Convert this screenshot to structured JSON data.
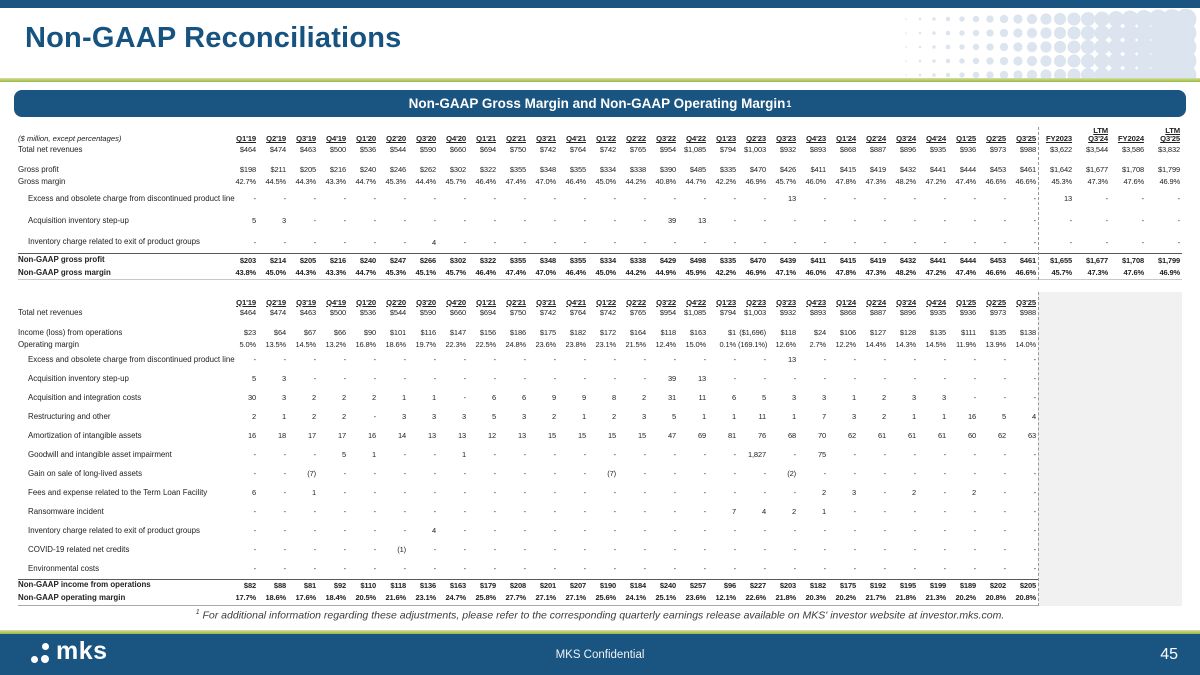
{
  "slide": {
    "title": "Non-GAAP Reconciliations",
    "banner": {
      "title": "Non-GAAP Gross Margin and Non-GAAP Operating Margin",
      "superscript": "1"
    },
    "footnote": {
      "sup": "1",
      "text": "For additional information regarding these adjustments, please refer to the corresponding quarterly earnings release available on MKS' investor website at investor.mks.com."
    },
    "footer": {
      "logo_text": "mks",
      "confidential": "MKS Confidential",
      "page_number": "45"
    }
  },
  "colors": {
    "primary_blue": "#1a5480",
    "title_blue": "#175380",
    "accent_green": "#9bb93c",
    "pattern_blue": "#dce4f0",
    "empty_area_grey": "#f1f1f2"
  },
  "tables": [
    {
      "name": "gross-margin-reconciliation-table",
      "unit_label": "($ million, except percentages)",
      "columns": [
        "Q1'19",
        "Q2'19",
        "Q3'19",
        "Q4'19",
        "Q1'20",
        "Q2'20",
        "Q3'20",
        "Q4'20",
        "Q1'21",
        "Q2'21",
        "Q3'21",
        "Q4'21",
        "Q1'22",
        "Q2'22",
        "Q3'22",
        "Q4'22",
        "Q1'23",
        "Q2'23",
        "Q3'23",
        "Q4'23",
        "Q1'24",
        "Q2'24",
        "Q3'24",
        "Q4'24",
        "Q1'25",
        "Q2'25",
        "Q3'25",
        "FY2023",
        "LTM|Q3'24",
        "FY2024",
        "LTM|Q3'25"
      ],
      "rows": [
        {
          "label": "Total net revenues",
          "cls": "plain",
          "values": [
            "$464",
            "$474",
            "$463",
            "$500",
            "$536",
            "$544",
            "$590",
            "$660",
            "$694",
            "$750",
            "$742",
            "$764",
            "$742",
            "$765",
            "$954",
            "$1,085",
            "$794",
            "$1,003",
            "$932",
            "$893",
            "$868",
            "$887",
            "$896",
            "$935",
            "$936",
            "$973",
            "$988",
            "$3,622",
            "$3,544",
            "$3,586",
            "$3,832"
          ]
        },
        {
          "spacer": true
        },
        {
          "label": "Gross profit",
          "cls": "plain",
          "values": [
            "$198",
            "$211",
            "$205",
            "$216",
            "$240",
            "$246",
            "$262",
            "$302",
            "$322",
            "$355",
            "$348",
            "$355",
            "$334",
            "$338",
            "$390",
            "$485",
            "$335",
            "$470",
            "$426",
            "$411",
            "$415",
            "$419",
            "$432",
            "$441",
            "$444",
            "$453",
            "$461",
            "$1,642",
            "$1,677",
            "$1,708",
            "$1,799"
          ]
        },
        {
          "label": "Gross margin",
          "cls": "plain",
          "values": [
            "42.7%",
            "44.5%",
            "44.3%",
            "43.3%",
            "44.7%",
            "45.3%",
            "44.4%",
            "45.7%",
            "46.4%",
            "47.4%",
            "47.0%",
            "46.4%",
            "45.0%",
            "44.2%",
            "40.8%",
            "44.7%",
            "42.2%",
            "46.9%",
            "45.7%",
            "46.0%",
            "47.8%",
            "47.3%",
            "48.2%",
            "47.2%",
            "47.4%",
            "46.6%",
            "46.6%",
            "45.3%",
            "47.3%",
            "47.6%",
            "46.9%"
          ]
        },
        {
          "label": "Excess and obsolete charge from discontinued product line",
          "cls": "ind",
          "values": [
            "-",
            "-",
            "-",
            "-",
            "-",
            "-",
            "-",
            "-",
            "-",
            "-",
            "-",
            "-",
            "-",
            "-",
            "-",
            "-",
            "-",
            "-",
            "13",
            "-",
            "-",
            "-",
            "-",
            "-",
            "-",
            "-",
            "-",
            "13",
            "-",
            "-",
            "-"
          ]
        },
        {
          "label": "Acquisition inventory step-up",
          "cls": "ind",
          "values": [
            "5",
            "3",
            "-",
            "-",
            "-",
            "-",
            "-",
            "-",
            "-",
            "-",
            "-",
            "-",
            "-",
            "-",
            "39",
            "13",
            "-",
            "-",
            "-",
            "-",
            "-",
            "-",
            "-",
            "-",
            "-",
            "-",
            "-",
            "-",
            "-",
            "-",
            "-"
          ]
        },
        {
          "label": "Inventory charge related to exit of product groups",
          "cls": "ind",
          "values": [
            "-",
            "-",
            "-",
            "-",
            "-",
            "-",
            "4",
            "-",
            "-",
            "-",
            "-",
            "-",
            "-",
            "-",
            "-",
            "-",
            "-",
            "-",
            "-",
            "-",
            "-",
            "-",
            "-",
            "-",
            "-",
            "-",
            "-",
            "-",
            "-",
            "-",
            "-"
          ]
        },
        {
          "label": "Non-GAAP gross profit",
          "cls": "boldtop",
          "values": [
            "$203",
            "$214",
            "$205",
            "$216",
            "$240",
            "$247",
            "$266",
            "$302",
            "$322",
            "$355",
            "$348",
            "$355",
            "$334",
            "$338",
            "$429",
            "$498",
            "$335",
            "$470",
            "$439",
            "$411",
            "$415",
            "$419",
            "$432",
            "$441",
            "$444",
            "$453",
            "$461",
            "$1,655",
            "$1,677",
            "$1,708",
            "$1,799"
          ]
        },
        {
          "label": "Non-GAAP gross margin",
          "cls": "bold",
          "values": [
            "43.8%",
            "45.0%",
            "44.3%",
            "43.3%",
            "44.7%",
            "45.3%",
            "45.1%",
            "45.7%",
            "46.4%",
            "47.4%",
            "47.0%",
            "46.4%",
            "45.0%",
            "44.2%",
            "44.9%",
            "45.9%",
            "42.2%",
            "46.9%",
            "47.1%",
            "46.0%",
            "47.8%",
            "47.3%",
            "48.2%",
            "47.2%",
            "47.4%",
            "46.6%",
            "46.6%",
            "45.7%",
            "47.3%",
            "47.6%",
            "46.9%"
          ]
        }
      ]
    },
    {
      "name": "operating-margin-reconciliation-table",
      "unit_label": "",
      "columns": [
        "Q1'19",
        "Q2'19",
        "Q3'19",
        "Q4'19",
        "Q1'20",
        "Q2'20",
        "Q3'20",
        "Q4'20",
        "Q1'21",
        "Q2'21",
        "Q3'21",
        "Q4'21",
        "Q1'22",
        "Q2'22",
        "Q3'22",
        "Q4'22",
        "Q1'23",
        "Q2'23",
        "Q3'23",
        "Q4'23",
        "Q1'24",
        "Q2'24",
        "Q3'24",
        "Q4'24",
        "Q1'25",
        "Q2'25",
        "Q3'25"
      ],
      "rows": [
        {
          "label": "Total net revenues",
          "cls": "plain",
          "values": [
            "$464",
            "$474",
            "$463",
            "$500",
            "$536",
            "$544",
            "$590",
            "$660",
            "$694",
            "$750",
            "$742",
            "$764",
            "$742",
            "$765",
            "$954",
            "$1,085",
            "$794",
            "$1,003",
            "$932",
            "$893",
            "$868",
            "$887",
            "$896",
            "$935",
            "$936",
            "$973",
            "$988"
          ]
        },
        {
          "spacer": true
        },
        {
          "label": "Income (loss) from operations",
          "cls": "plain",
          "values": [
            "$23",
            "$64",
            "$67",
            "$66",
            "$90",
            "$101",
            "$116",
            "$147",
            "$156",
            "$186",
            "$175",
            "$182",
            "$172",
            "$164",
            "$118",
            "$163",
            "$1",
            "($1,696)",
            "$118",
            "$24",
            "$106",
            "$127",
            "$128",
            "$135",
            "$111",
            "$135",
            "$138"
          ]
        },
        {
          "label": "Operating margin",
          "cls": "plain",
          "values": [
            "5.0%",
            "13.5%",
            "14.5%",
            "13.2%",
            "16.8%",
            "18.6%",
            "19.7%",
            "22.3%",
            "22.5%",
            "24.8%",
            "23.6%",
            "23.8%",
            "23.1%",
            "21.5%",
            "12.4%",
            "15.0%",
            "0.1%",
            "(169.1%)",
            "12.6%",
            "2.7%",
            "12.2%",
            "14.4%",
            "14.3%",
            "14.5%",
            "11.9%",
            "13.9%",
            "14.0%"
          ]
        },
        {
          "label": "Excess and obsolete charge from discontinued product line",
          "cls": "ind",
          "values": [
            "-",
            "-",
            "-",
            "-",
            "-",
            "-",
            "-",
            "-",
            "-",
            "-",
            "-",
            "-",
            "-",
            "-",
            "-",
            "-",
            "-",
            "-",
            "13",
            "-",
            "-",
            "-",
            "-",
            "-",
            "-",
            "-",
            "-"
          ]
        },
        {
          "label": "Acquisition inventory step-up",
          "cls": "ind",
          "values": [
            "5",
            "3",
            "-",
            "-",
            "-",
            "-",
            "-",
            "-",
            "-",
            "-",
            "-",
            "-",
            "-",
            "-",
            "39",
            "13",
            "-",
            "-",
            "-",
            "-",
            "-",
            "-",
            "-",
            "-",
            "-",
            "-",
            "-"
          ]
        },
        {
          "label": "Acquisition and integration costs",
          "cls": "ind",
          "values": [
            "30",
            "3",
            "2",
            "2",
            "2",
            "1",
            "1",
            "-",
            "6",
            "6",
            "9",
            "9",
            "8",
            "2",
            "31",
            "11",
            "6",
            "5",
            "3",
            "3",
            "1",
            "2",
            "3",
            "3",
            "-",
            "-",
            "-"
          ]
        },
        {
          "label": "Restructuring and other",
          "cls": "ind",
          "values": [
            "2",
            "1",
            "2",
            "2",
            "-",
            "3",
            "3",
            "3",
            "5",
            "3",
            "2",
            "1",
            "2",
            "3",
            "5",
            "1",
            "1",
            "11",
            "1",
            "7",
            "3",
            "2",
            "1",
            "1",
            "16",
            "5",
            "4"
          ]
        },
        {
          "label": "Amortization of intangible assets",
          "cls": "ind",
          "values": [
            "16",
            "18",
            "17",
            "17",
            "16",
            "14",
            "13",
            "13",
            "12",
            "13",
            "15",
            "15",
            "15",
            "15",
            "47",
            "69",
            "81",
            "76",
            "68",
            "70",
            "62",
            "61",
            "61",
            "61",
            "60",
            "62",
            "63"
          ]
        },
        {
          "label": "Goodwill and intangible asset impairment",
          "cls": "ind",
          "values": [
            "-",
            "-",
            "-",
            "5",
            "1",
            "-",
            "-",
            "1",
            "-",
            "-",
            "-",
            "-",
            "-",
            "-",
            "-",
            "-",
            "-",
            "1,827",
            "-",
            "75",
            "-",
            "-",
            "-",
            "-",
            "-",
            "-",
            "-"
          ]
        },
        {
          "label": "Gain on sale of long-lived assets",
          "cls": "ind",
          "values": [
            "-",
            "-",
            "(7)",
            "-",
            "-",
            "-",
            "-",
            "-",
            "-",
            "-",
            "-",
            "-",
            "(7)",
            "-",
            "-",
            "-",
            "-",
            "-",
            "(2)",
            "-",
            "-",
            "-",
            "-",
            "-",
            "-",
            "-",
            "-"
          ]
        },
        {
          "label": "Fees and expense related to the Term Loan Facility",
          "cls": "ind",
          "values": [
            "6",
            "-",
            "1",
            "-",
            "-",
            "-",
            "-",
            "-",
            "-",
            "-",
            "-",
            "-",
            "-",
            "-",
            "-",
            "-",
            "-",
            "-",
            "-",
            "2",
            "3",
            "-",
            "2",
            "-",
            "2",
            "-",
            "-"
          ]
        },
        {
          "label": "Ransomware incident",
          "cls": "ind",
          "values": [
            "-",
            "-",
            "-",
            "-",
            "-",
            "-",
            "-",
            "-",
            "-",
            "-",
            "-",
            "-",
            "-",
            "-",
            "-",
            "-",
            "7",
            "4",
            "2",
            "1",
            "-",
            "-",
            "-",
            "-",
            "-",
            "-",
            "-"
          ]
        },
        {
          "label": "Inventory charge related to exit of product groups",
          "cls": "ind",
          "values": [
            "-",
            "-",
            "-",
            "-",
            "-",
            "-",
            "4",
            "-",
            "-",
            "-",
            "-",
            "-",
            "-",
            "-",
            "-",
            "-",
            "-",
            "-",
            "-",
            "-",
            "-",
            "-",
            "-",
            "-",
            "-",
            "-",
            "-"
          ]
        },
        {
          "label": "COVID-19 related net credits",
          "cls": "ind",
          "values": [
            "-",
            "-",
            "-",
            "-",
            "-",
            "(1)",
            "-",
            "-",
            "-",
            "-",
            "-",
            "-",
            "-",
            "-",
            "-",
            "-",
            "-",
            "-",
            "-",
            "-",
            "-",
            "-",
            "-",
            "-",
            "-",
            "-",
            "-"
          ]
        },
        {
          "label": "Environmental costs",
          "cls": "ind",
          "values": [
            "-",
            "-",
            "-",
            "-",
            "-",
            "-",
            "-",
            "-",
            "-",
            "-",
            "-",
            "-",
            "-",
            "-",
            "-",
            "-",
            "-",
            "-",
            "-",
            "-",
            "-",
            "-",
            "-",
            "-",
            "-",
            "-",
            "-"
          ]
        },
        {
          "label": "Non-GAAP income from operations",
          "cls": "boldtop",
          "values": [
            "$82",
            "$88",
            "$81",
            "$92",
            "$110",
            "$118",
            "$136",
            "$163",
            "$179",
            "$208",
            "$201",
            "$207",
            "$190",
            "$184",
            "$240",
            "$257",
            "$96",
            "$227",
            "$203",
            "$182",
            "$175",
            "$192",
            "$195",
            "$199",
            "$189",
            "$202",
            "$205"
          ]
        },
        {
          "label": "Non-GAAP operating margin",
          "cls": "bold",
          "values": [
            "17.7%",
            "18.6%",
            "17.6%",
            "18.4%",
            "20.5%",
            "21.6%",
            "23.1%",
            "24.7%",
            "25.8%",
            "27.7%",
            "27.1%",
            "27.1%",
            "25.6%",
            "24.1%",
            "25.1%",
            "23.6%",
            "12.1%",
            "22.6%",
            "21.8%",
            "20.3%",
            "20.2%",
            "21.7%",
            "21.8%",
            "21.3%",
            "20.2%",
            "20.8%",
            "20.8%"
          ]
        }
      ]
    }
  ]
}
